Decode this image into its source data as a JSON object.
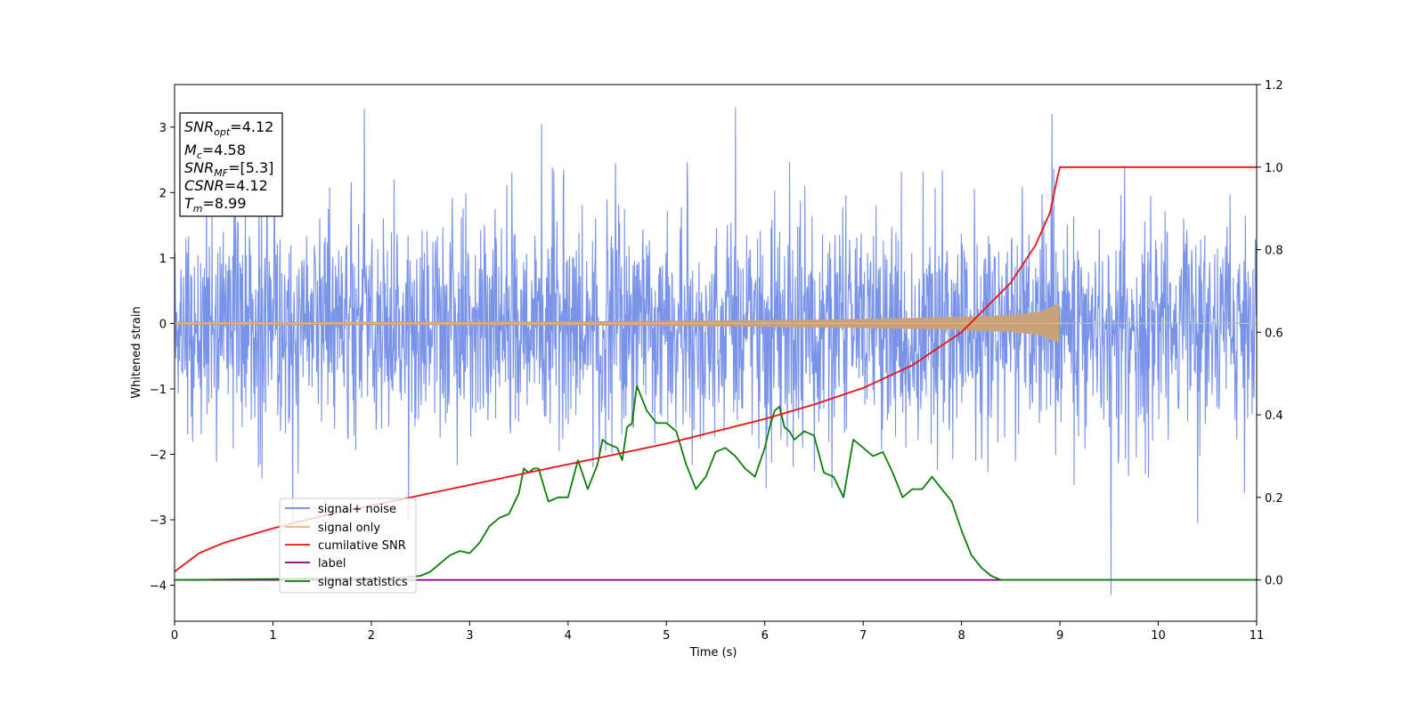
{
  "chart_data": {
    "type": "line",
    "xlabel": "Time (s)",
    "ylabel": "Whitened strain",
    "xlim": [
      0,
      11
    ],
    "ylim_left": [
      -4.55,
      3.65
    ],
    "ylim_right": [
      -0.1,
      1.2
    ],
    "x_ticks": [
      "0",
      "1",
      "2",
      "3",
      "4",
      "5",
      "6",
      "7",
      "8",
      "9",
      "10",
      "11"
    ],
    "y_left_ticks": [
      "−4",
      "−3",
      "−2",
      "−1",
      "0",
      "1",
      "2",
      "3"
    ],
    "y_right_ticks": [
      "0.0",
      "0.2",
      "0.4",
      "0.6",
      "0.8",
      "1.0",
      "1.2"
    ],
    "info_box": {
      "snr_opt": {
        "main": "SNR",
        "sub": "opt",
        "value": "=4.12"
      },
      "mc": {
        "main": "M",
        "sub": "c",
        "value": "=4.58"
      },
      "snr_mf": {
        "main": "SNR",
        "sub": "MF",
        "value": "=[5.3]"
      },
      "csnr": {
        "main": "CSNR",
        "value": "=4.12"
      },
      "tm": {
        "main": "T",
        "sub": "m",
        "value": "=8.99"
      }
    },
    "legend": {
      "position": "lower-left",
      "entries": [
        "signal+ noise",
        "signal only",
        "cumilative SNR",
        "label",
        "signal statistics"
      ]
    },
    "colors": {
      "signal_noise": "#6a87e6",
      "signal_only": "#f0b070",
      "signal_only_band": "#c8a27a",
      "cumulative_snr": "#ee1111",
      "label": "#800080",
      "signal_statistics": "#0a7f0a"
    },
    "series": [
      {
        "name": "signal+ noise",
        "axis": "left",
        "description_values": "dense noise, approx range -2.4 to 2.4 with spikes",
        "spikes": [
          [
            1.93,
            3.28
          ],
          [
            5.7,
            3.3
          ],
          [
            3.73,
            3.05
          ],
          [
            8.92,
            3.2
          ],
          [
            9.52,
            -4.15
          ],
          [
            10.4,
            -3.05
          ],
          [
            1.2,
            -3.02
          ],
          [
            2.38,
            -3.02
          ]
        ]
      },
      {
        "name": "signal only",
        "axis": "left",
        "envelope": [
          [
            0,
            0.02
          ],
          [
            2,
            0.025
          ],
          [
            4,
            0.03
          ],
          [
            5,
            0.04
          ],
          [
            6,
            0.05
          ],
          [
            7,
            0.07
          ],
          [
            8,
            0.1
          ],
          [
            8.5,
            0.13
          ],
          [
            8.8,
            0.18
          ],
          [
            8.95,
            0.28
          ],
          [
            8.99,
            0.3
          ],
          [
            9.0,
            0.0
          ],
          [
            11,
            0.0
          ]
        ]
      },
      {
        "name": "cumilative SNR",
        "axis": "right",
        "x": [
          0,
          0.25,
          0.5,
          1,
          1.5,
          2,
          2.5,
          3,
          3.5,
          4,
          4.5,
          5,
          5.5,
          6,
          6.5,
          7,
          7.5,
          8,
          8.5,
          8.75,
          8.9,
          8.97,
          9.0,
          11
        ],
        "y": [
          0.02,
          0.065,
          0.09,
          0.125,
          0.155,
          0.18,
          0.205,
          0.23,
          0.255,
          0.28,
          0.305,
          0.33,
          0.36,
          0.39,
          0.425,
          0.465,
          0.52,
          0.6,
          0.72,
          0.81,
          0.89,
          0.97,
          1.0,
          1.0
        ]
      },
      {
        "name": "label",
        "axis": "right",
        "x": [
          0,
          11
        ],
        "y": [
          0.0,
          0.0
        ]
      },
      {
        "name": "signal statistics",
        "axis": "right",
        "x": [
          0,
          2.3,
          2.5,
          2.6,
          2.7,
          2.8,
          2.9,
          3.0,
          3.1,
          3.2,
          3.3,
          3.4,
          3.5,
          3.55,
          3.6,
          3.65,
          3.7,
          3.8,
          3.9,
          4.0,
          4.1,
          4.2,
          4.3,
          4.35,
          4.4,
          4.5,
          4.55,
          4.6,
          4.65,
          4.7,
          4.8,
          4.9,
          5.0,
          5.1,
          5.2,
          5.3,
          5.4,
          5.5,
          5.6,
          5.7,
          5.8,
          5.9,
          6.0,
          6.05,
          6.1,
          6.15,
          6.2,
          6.25,
          6.3,
          6.4,
          6.5,
          6.6,
          6.7,
          6.8,
          6.9,
          7.0,
          7.1,
          7.2,
          7.3,
          7.4,
          7.5,
          7.6,
          7.7,
          7.8,
          7.9,
          8.0,
          8.1,
          8.2,
          8.3,
          8.4,
          8.6,
          11
        ],
        "y": [
          0.0,
          0.005,
          0.01,
          0.02,
          0.04,
          0.06,
          0.07,
          0.065,
          0.09,
          0.13,
          0.15,
          0.16,
          0.21,
          0.27,
          0.26,
          0.27,
          0.27,
          0.19,
          0.2,
          0.2,
          0.29,
          0.22,
          0.28,
          0.34,
          0.33,
          0.32,
          0.29,
          0.37,
          0.38,
          0.47,
          0.41,
          0.38,
          0.38,
          0.36,
          0.28,
          0.22,
          0.25,
          0.31,
          0.32,
          0.3,
          0.27,
          0.25,
          0.32,
          0.37,
          0.41,
          0.42,
          0.37,
          0.36,
          0.34,
          0.36,
          0.35,
          0.26,
          0.25,
          0.2,
          0.34,
          0.32,
          0.3,
          0.31,
          0.26,
          0.2,
          0.22,
          0.22,
          0.25,
          0.22,
          0.19,
          0.12,
          0.06,
          0.03,
          0.01,
          0.0,
          0.0,
          0.0
        ]
      }
    ]
  }
}
